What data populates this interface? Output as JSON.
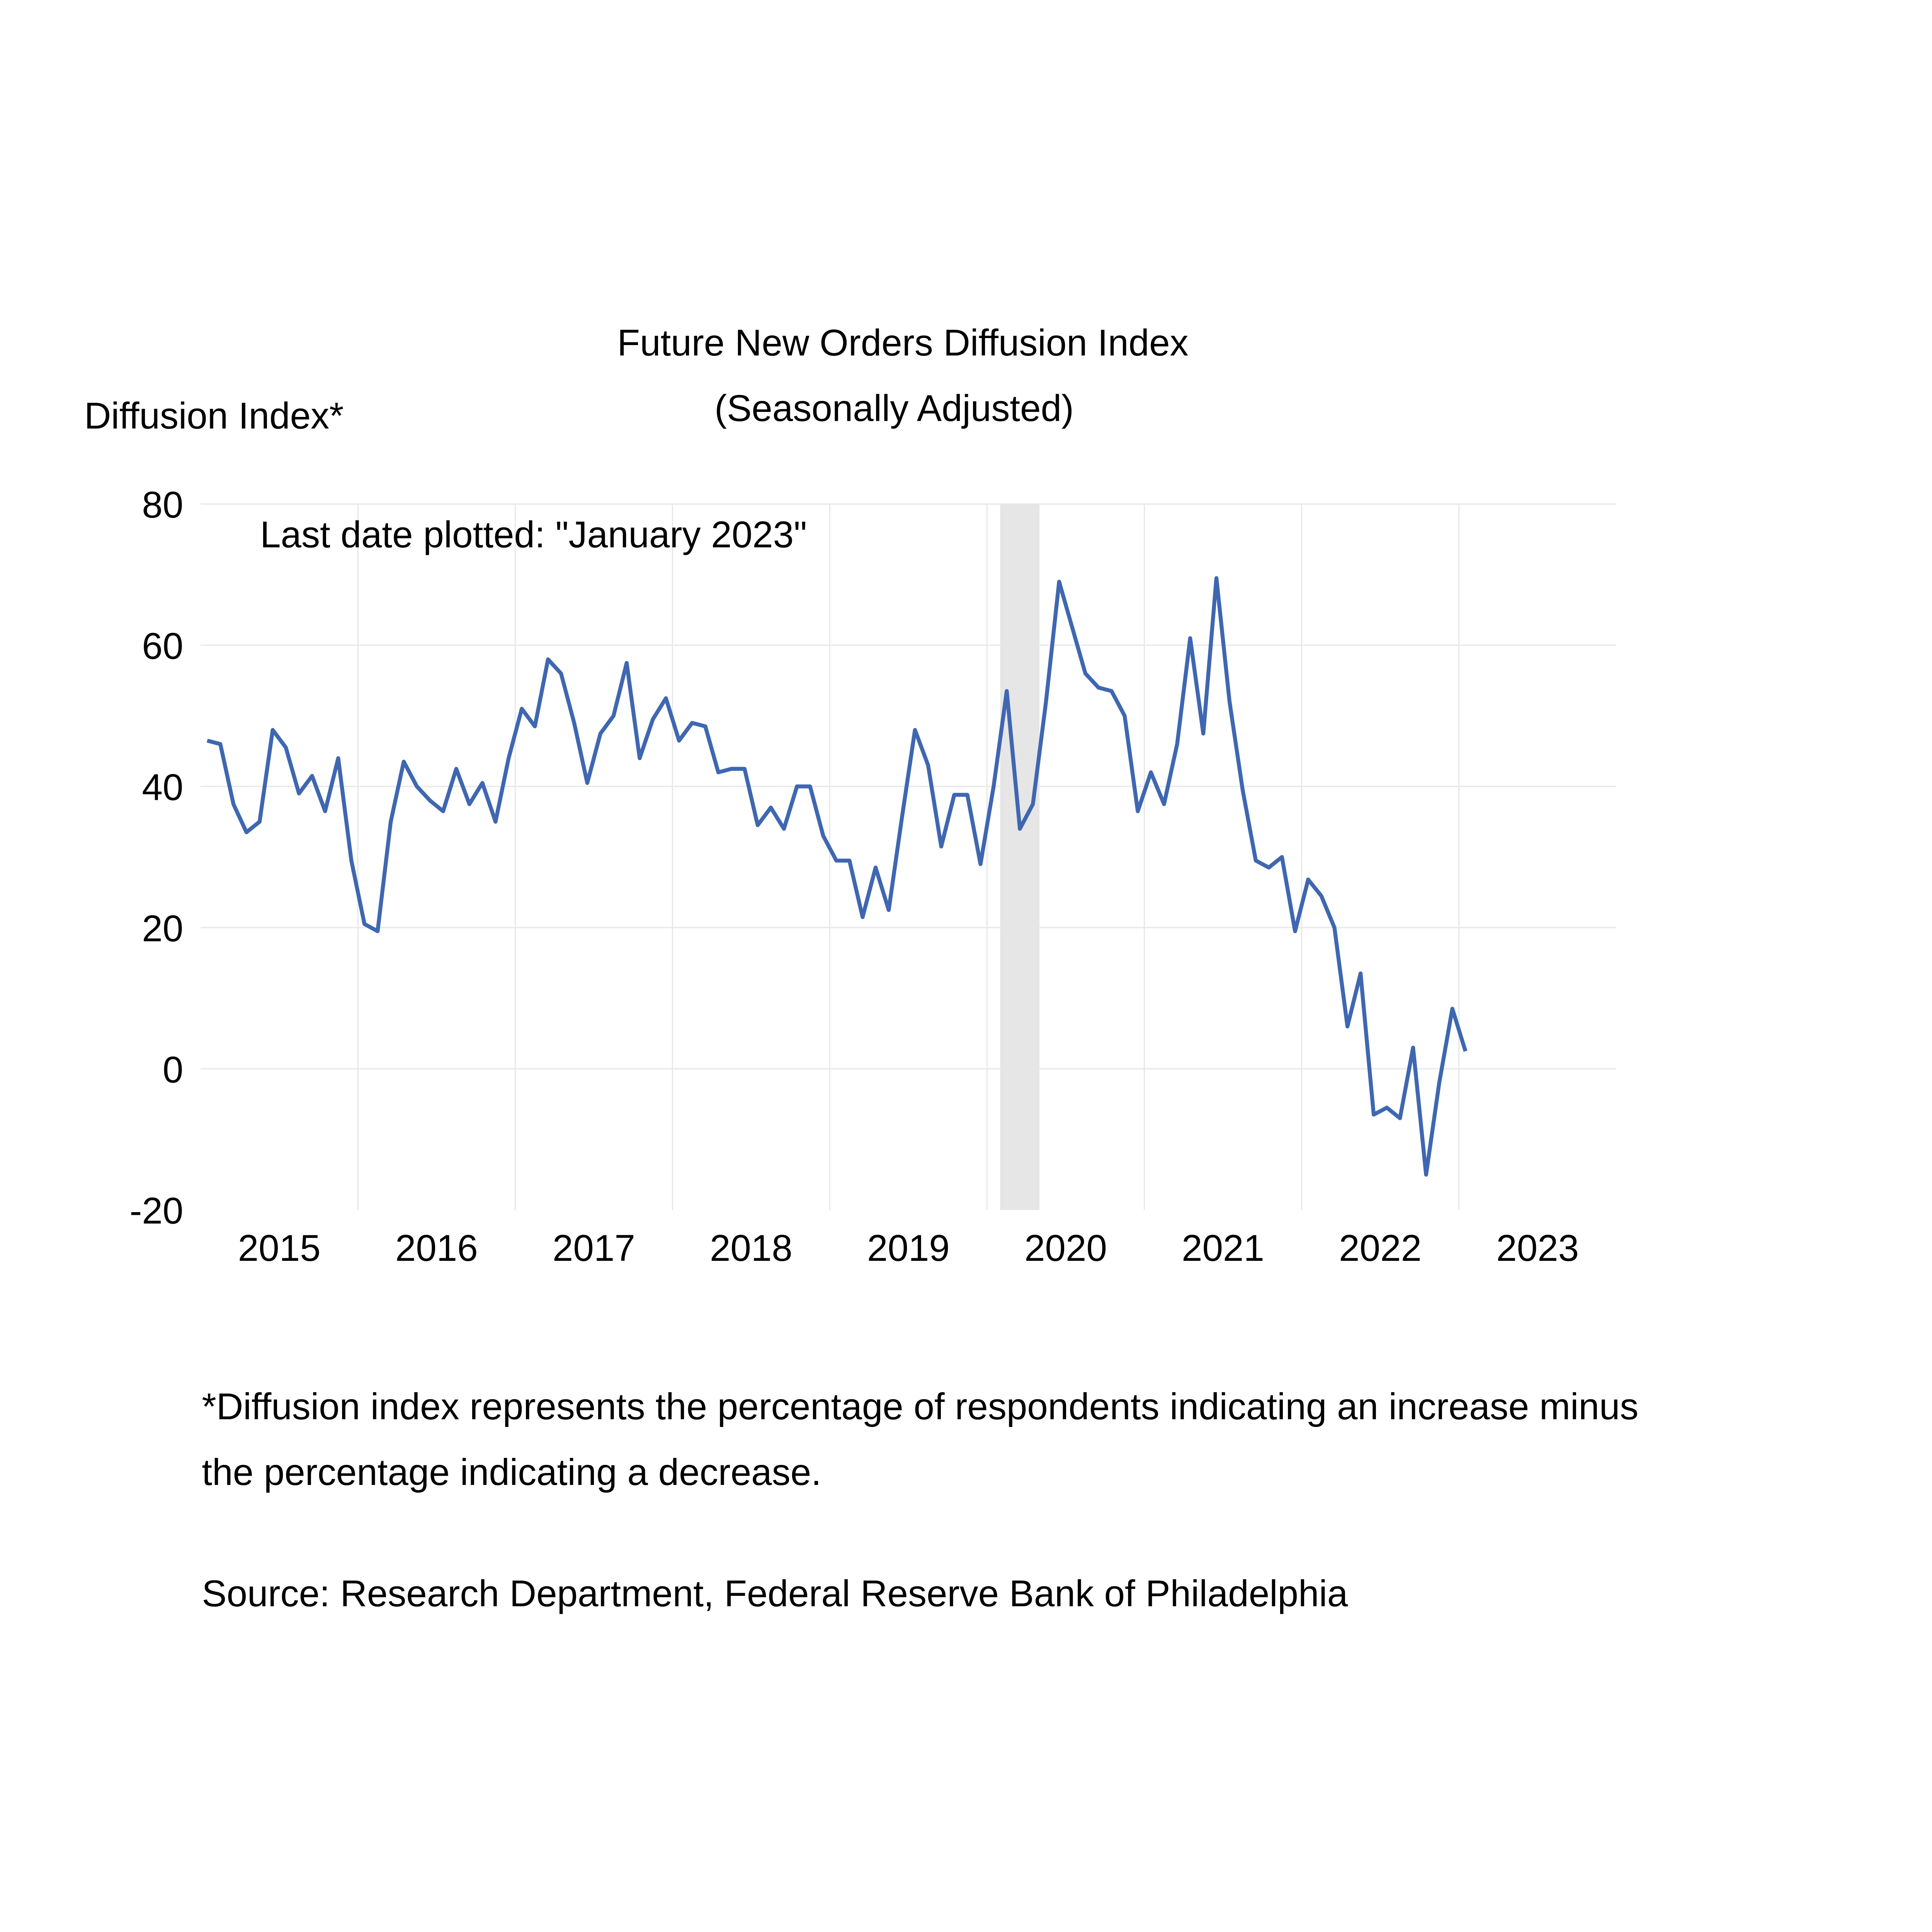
{
  "chart_data": {
    "type": "line",
    "title": "Future New Orders Diffusion Index",
    "subtitle": "(Seasonally Adjusted)",
    "ylabel": "Diffusion Index*",
    "xlabel": "",
    "annotation": "Last date plotted: \"January 2023\"",
    "ylim": [
      -20,
      80
    ],
    "yticks": [
      "80",
      "60",
      "40",
      "20",
      "0",
      "-20"
    ],
    "xticks": [
      "2015",
      "2016",
      "2017",
      "2018",
      "2019",
      "2020",
      "2021",
      "2022",
      "2023"
    ],
    "xlim": [
      "2015-01",
      "2023-12"
    ],
    "grid": true,
    "line_color": "#3f67b1",
    "shade_color": "#e6e6e6",
    "recession_shading": {
      "start": "2020-02",
      "end": "2020-04"
    },
    "x": [
      "2015-01",
      "2015-02",
      "2015-03",
      "2015-04",
      "2015-05",
      "2015-06",
      "2015-07",
      "2015-08",
      "2015-09",
      "2015-10",
      "2015-11",
      "2015-12",
      "2016-01",
      "2016-02",
      "2016-03",
      "2016-04",
      "2016-05",
      "2016-06",
      "2016-07",
      "2016-08",
      "2016-09",
      "2016-10",
      "2016-11",
      "2016-12",
      "2017-01",
      "2017-02",
      "2017-03",
      "2017-04",
      "2017-05",
      "2017-06",
      "2017-07",
      "2017-08",
      "2017-09",
      "2017-10",
      "2017-11",
      "2017-12",
      "2018-01",
      "2018-02",
      "2018-03",
      "2018-04",
      "2018-05",
      "2018-06",
      "2018-07",
      "2018-08",
      "2018-09",
      "2018-10",
      "2018-11",
      "2018-12",
      "2019-01",
      "2019-02",
      "2019-03",
      "2019-04",
      "2019-05",
      "2019-06",
      "2019-07",
      "2019-08",
      "2019-09",
      "2019-10",
      "2019-11",
      "2019-12",
      "2020-01",
      "2020-02",
      "2020-03",
      "2020-04",
      "2020-05",
      "2020-06",
      "2020-07",
      "2020-08",
      "2020-09",
      "2020-10",
      "2020-11",
      "2020-12",
      "2021-01",
      "2021-02",
      "2021-03",
      "2021-04",
      "2021-05",
      "2021-06",
      "2021-07",
      "2021-08",
      "2021-09",
      "2021-10",
      "2021-11",
      "2021-12",
      "2022-01",
      "2022-02",
      "2022-03",
      "2022-04",
      "2022-05",
      "2022-06",
      "2022-07",
      "2022-08",
      "2022-09",
      "2022-10",
      "2022-11",
      "2022-12",
      "2023-01"
    ],
    "values": [
      46.5,
      46.0,
      37.5,
      33.5,
      35.0,
      48.0,
      45.5,
      39.0,
      41.5,
      36.5,
      44.0,
      29.5,
      20.5,
      19.5,
      35.0,
      43.5,
      40.0,
      38.0,
      36.5,
      42.5,
      37.5,
      40.5,
      35.0,
      44.0,
      51.0,
      48.5,
      58.0,
      56.0,
      49.0,
      40.5,
      47.5,
      50.0,
      57.5,
      44.0,
      49.5,
      52.5,
      46.5,
      49.0,
      48.5,
      42.0,
      42.5,
      42.5,
      34.5,
      37.0,
      34.0,
      40.0,
      40.0,
      33.0,
      29.5,
      29.5,
      21.5,
      28.5,
      22.5,
      35.5,
      48.0,
      43.0,
      31.5,
      38.8,
      38.8,
      29.0,
      40.0,
      53.5,
      34.0,
      37.5,
      52.0,
      69.0,
      62.5,
      56.0,
      54.0,
      53.5,
      50.0,
      36.5,
      42.0,
      37.5,
      46.0,
      61.0,
      47.5,
      69.5,
      52.0,
      39.5,
      29.5,
      28.5,
      30.0,
      19.5,
      26.8,
      24.5,
      20.0,
      6.0,
      13.5,
      -6.5,
      -5.5,
      -7.0,
      3.0,
      -15.0,
      -2.0,
      8.5,
      2.5
    ]
  },
  "footnote": {
    "line1": "*Diffusion index represents the percentage of respondents indicating an increase minus",
    "line2": "the percentage indicating a decrease.",
    "source": "Source: Research Department, Federal Reserve Bank of Philadelphia"
  }
}
